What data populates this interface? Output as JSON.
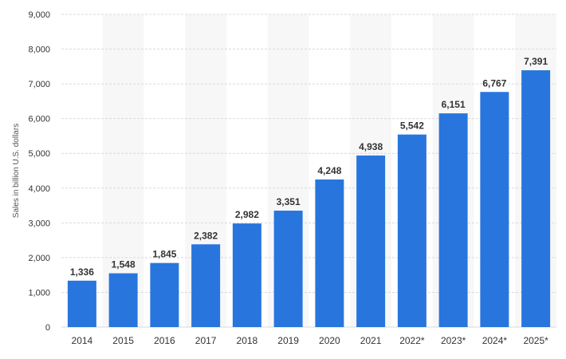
{
  "chart_data": {
    "type": "bar",
    "title": "",
    "xlabel": "",
    "ylabel": "Sales in billion U.S. dollars",
    "categories": [
      "2014",
      "2015",
      "2016",
      "2017",
      "2018",
      "2019",
      "2020",
      "2021",
      "2022*",
      "2023*",
      "2024*",
      "2025*"
    ],
    "values": [
      1336,
      1548,
      1845,
      2382,
      2982,
      3351,
      4248,
      4938,
      5542,
      6151,
      6767,
      7391
    ],
    "value_labels": [
      "1,336",
      "1,548",
      "1,845",
      "2,382",
      "2,982",
      "3,351",
      "4,248",
      "4,938",
      "5,542",
      "6,151",
      "6,767",
      "7,391"
    ],
    "ylim": [
      0,
      9000
    ],
    "yticks": [
      0,
      1000,
      2000,
      3000,
      4000,
      5000,
      6000,
      7000,
      8000,
      9000
    ],
    "ytick_labels": [
      "0",
      "1,000",
      "2,000",
      "3,000",
      "4,000",
      "5,000",
      "6,000",
      "7,000",
      "8,000",
      "9,000"
    ],
    "grid": true,
    "bar_color": "#2876dd",
    "band_color": "#f7f7f7"
  }
}
